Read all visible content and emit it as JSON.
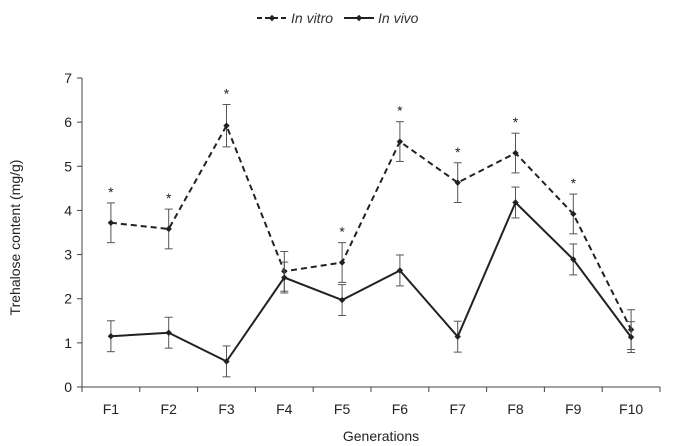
{
  "chart_data": {
    "type": "line",
    "title": "",
    "xlabel": "Generations",
    "ylabel": "Trehalose content (mg/g)",
    "ylim": [
      0,
      7
    ],
    "yticks": [
      0,
      1,
      2,
      3,
      4,
      5,
      6,
      7
    ],
    "grid": false,
    "legend_position": "top-center",
    "categories": [
      "F1",
      "F2",
      "F3",
      "F4",
      "F5",
      "F6",
      "F7",
      "F8",
      "F9",
      "F10"
    ],
    "series": [
      {
        "name": "In vitro",
        "style": "dashed",
        "color": "#222222",
        "values": [
          3.72,
          3.58,
          5.92,
          2.62,
          2.82,
          5.56,
          4.63,
          5.3,
          3.92,
          1.3
        ],
        "errors": [
          0.45,
          0.45,
          0.48,
          0.45,
          0.45,
          0.45,
          0.45,
          0.45,
          0.45,
          0.45
        ]
      },
      {
        "name": "In vivo",
        "style": "solid",
        "color": "#222222",
        "values": [
          1.15,
          1.23,
          0.58,
          2.48,
          1.97,
          2.64,
          1.14,
          4.18,
          2.89,
          1.13
        ],
        "errors": [
          0.35,
          0.35,
          0.35,
          0.35,
          0.35,
          0.35,
          0.35,
          0.35,
          0.35,
          0.35
        ]
      }
    ],
    "significance": {
      "marker": "*",
      "categories": [
        "F1",
        "F2",
        "F3",
        "F5",
        "F6",
        "F7",
        "F8",
        "F9"
      ]
    }
  }
}
